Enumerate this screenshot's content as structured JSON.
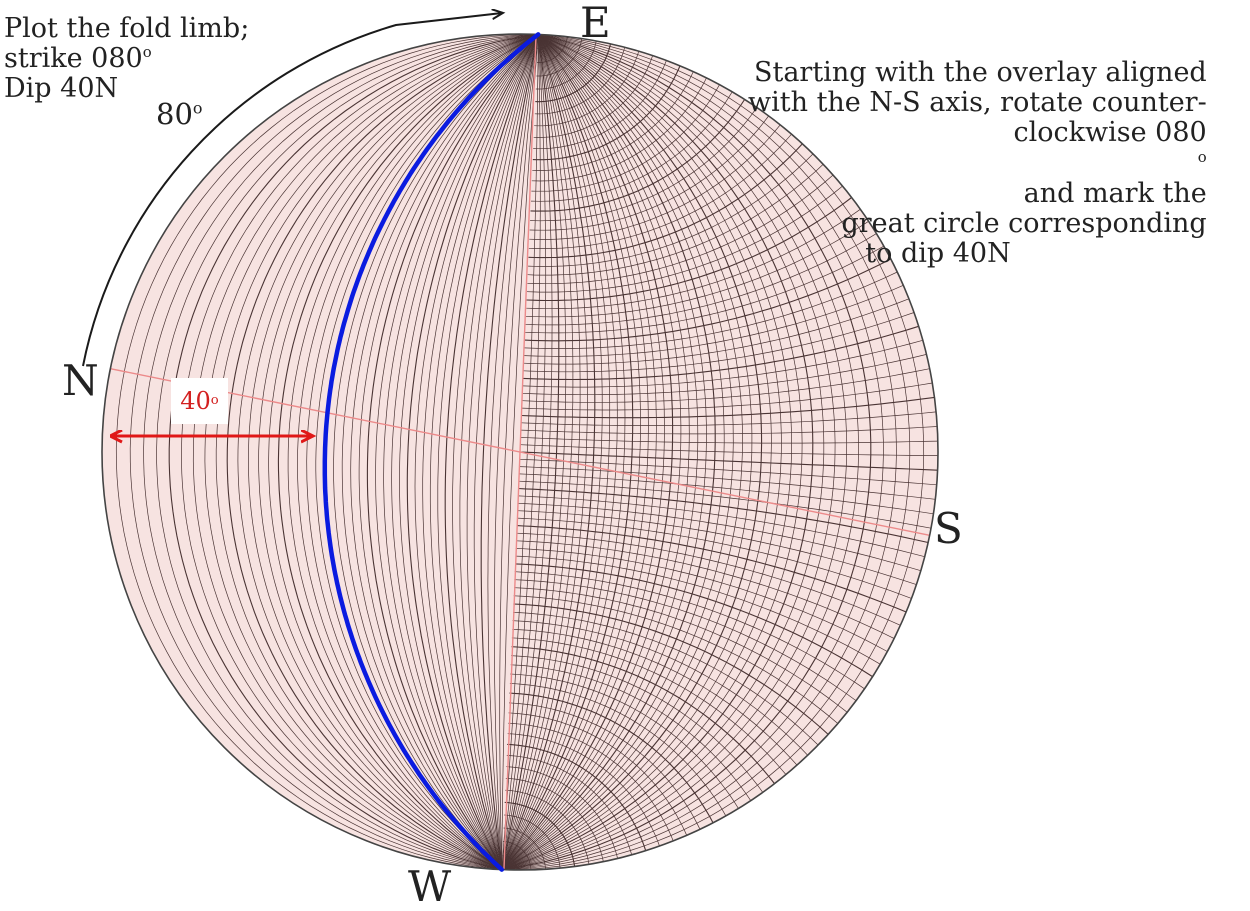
{
  "instructions_left": {
    "line1": "Plot the fold limb;",
    "line2_text": "strike 080",
    "line2_sup": "o",
    "line3": "Dip 40N"
  },
  "instructions_right": {
    "line1": "Starting with the overlay aligned",
    "line2": "with the N-S axis, rotate counter-",
    "line3_text": "clockwise 080",
    "line3_sup": "o",
    "line3_after": " and mark the",
    "line4": "great circle corresponding",
    "line5": "to dip 40N"
  },
  "rotation_label": {
    "text": "80",
    "sup": "o"
  },
  "dip_label": {
    "text": "40",
    "sup": "o"
  },
  "cardinals": {
    "E": "E",
    "N": "N",
    "S": "S",
    "W": "W"
  },
  "stereonet": {
    "type": "equal-angle Wulff net",
    "rotation_deg": 80,
    "strike_deg": 80,
    "dip_deg": 40,
    "dip_direction": "N",
    "grid_interval_deg": 2
  },
  "colors": {
    "net_fill": "#f7e3e1",
    "grid_line": "#4a3434",
    "axis_line": "#ec8a8a",
    "great_circle": "#0a1be0",
    "dip_arrow": "#e01818",
    "rotation_arrow": "#1a1a1a",
    "text": "#222222",
    "dip_label": "#d32020"
  }
}
